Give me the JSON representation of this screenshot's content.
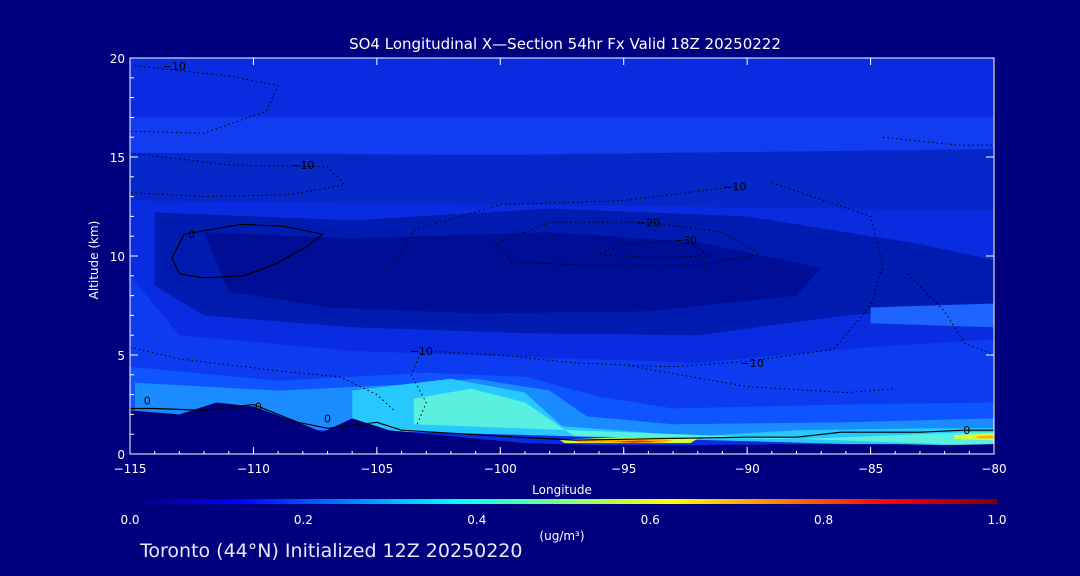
{
  "chart_data": {
    "type": "heatmap",
    "title": "SO4 Longitudinal X—Section 54hr  Fx Valid 18Z 20250222",
    "xlabel": "Longitude",
    "ylabel": "Altitude (km)",
    "xlim": [
      -115,
      -80
    ],
    "ylim": [
      0,
      20
    ],
    "x_ticks": [
      -115,
      -110,
      -105,
      -100,
      -95,
      -90,
      -85,
      -80
    ],
    "x_tick_labels": [
      "−115",
      "−110",
      "−105",
      "−100",
      "−95",
      "−90",
      "−85",
      "−80"
    ],
    "y_ticks": [
      0,
      5,
      10,
      15,
      20
    ],
    "y_tick_labels": [
      "0",
      "5",
      "10",
      "15",
      "20"
    ],
    "colorbar": {
      "min": 0.0,
      "max": 1.0,
      "ticks": [
        0.0,
        0.2,
        0.4,
        0.6,
        0.8,
        1.0
      ],
      "tick_labels": [
        "0.0",
        "0.2",
        "0.4",
        "0.6",
        "0.8",
        "1.0"
      ],
      "unit_label": "(ug/m³)",
      "colors": [
        "#00007f",
        "#0000ff",
        "#0080ff",
        "#00ffff",
        "#80ff80",
        "#ffff00",
        "#ff8000",
        "#ff0000",
        "#7f0000"
      ]
    },
    "contour_labels": [
      {
        "text": "−10",
        "lon": -113.2,
        "alt": 19.6
      },
      {
        "text": "−10",
        "lon": -108.0,
        "alt": 14.6
      },
      {
        "text": "−10",
        "lon": -90.5,
        "alt": 13.5
      },
      {
        "text": "−20",
        "lon": -94.0,
        "alt": 11.7
      },
      {
        "text": "−30",
        "lon": -92.5,
        "alt": 10.8
      },
      {
        "text": "0",
        "lon": -112.5,
        "alt": 11.1
      },
      {
        "text": "−10",
        "lon": -103.2,
        "alt": 5.2
      },
      {
        "text": "−10",
        "lon": -89.8,
        "alt": 4.6
      },
      {
        "text": "0",
        "lon": -109.8,
        "alt": 2.4
      },
      {
        "text": "0",
        "lon": -107.0,
        "alt": 1.8
      },
      {
        "text": "0",
        "lon": -114.3,
        "alt": 2.7
      },
      {
        "text": "0",
        "lon": -81.1,
        "alt": 1.2
      }
    ]
  },
  "footer": "Toronto (44°N) Initialized 12Z 20250220",
  "colors": {
    "background": "#00007f",
    "text": "#ffffff"
  }
}
